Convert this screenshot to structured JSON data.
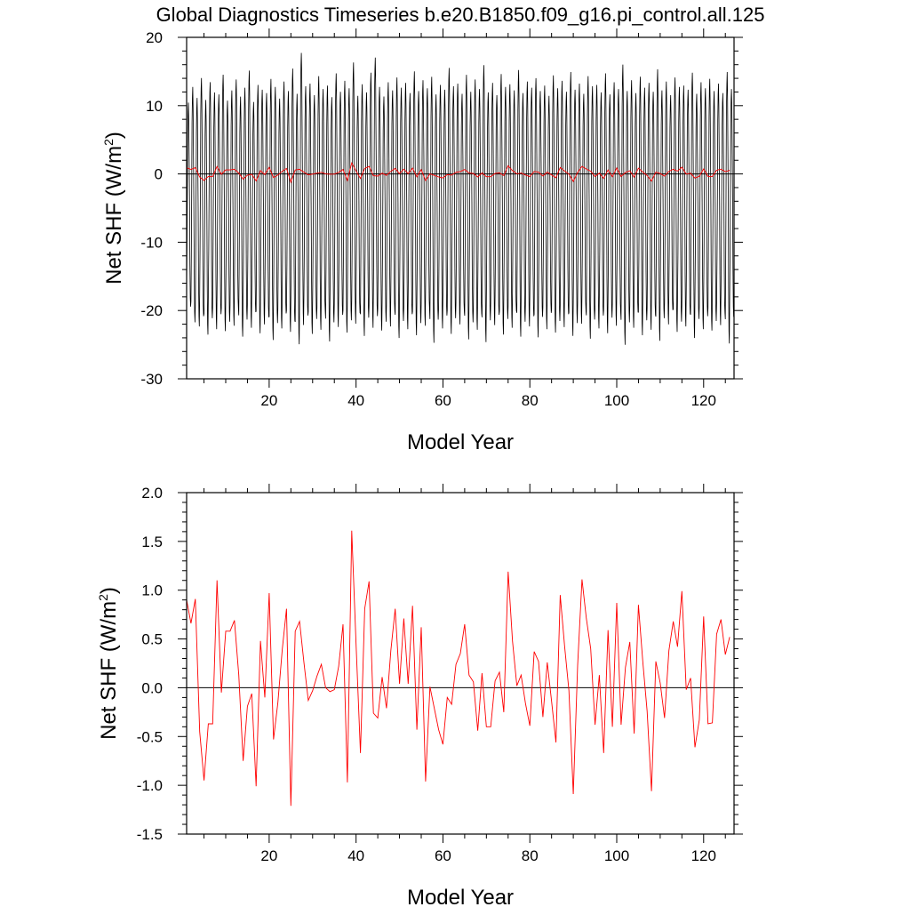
{
  "chart_data": [
    {
      "type": "line",
      "title": "Global Diagnostics Timeseries b.e20.B1850.f09_g16.pi_control.all.125",
      "xlabel": "Model Year",
      "ylabel": "Net SHF (W/m²)",
      "ylabel_main": "Net SHF (W/m",
      "ylabel_sup": "2",
      "ylabel_end": ")",
      "xlim": [
        1,
        127
      ],
      "ylim": [
        -30,
        20
      ],
      "x_ticks": [
        20,
        40,
        60,
        80,
        100,
        120
      ],
      "y_ticks": [
        -30,
        -20,
        -10,
        0,
        10,
        20
      ],
      "y_tick_labels": [
        "-30",
        "-20",
        "-10",
        "0",
        "10",
        "20"
      ],
      "zero_line": true,
      "series": [
        {
          "color": "#000000",
          "description": "monthly",
          "monthly_seasonal_max": [
            10.5,
            12.8,
            11.2,
            14.1,
            10.9,
            13.5,
            12.0,
            11.7,
            14.6,
            10.8,
            12.3,
            13.9,
            11.4,
            12.7,
            15.2,
            10.6,
            13.1,
            12.4,
            11.9,
            14.0,
            12.8,
            11.1,
            13.6,
            12.2,
            15.5,
            11.8,
            17.8,
            12.9,
            13.3,
            11.6,
            14.4,
            12.5,
            13.0,
            11.3,
            14.8,
            12.1,
            13.7,
            12.6,
            16.4,
            11.5,
            13.2,
            12.0,
            14.9,
            17.1,
            12.8,
            11.4,
            13.5,
            12.3,
            14.2,
            12.7,
            13.4,
            11.9,
            15.1,
            12.2,
            13.8,
            12.6,
            14.3,
            11.7,
            13.1,
            12.4,
            15.6,
            12.9,
            13.3,
            11.8,
            14.6,
            12.1,
            13.9,
            12.5,
            16.0,
            12.0,
            13.4,
            11.6,
            14.7,
            12.8,
            13.2,
            12.3,
            15.3,
            11.9,
            13.6,
            12.7,
            14.1,
            12.2,
            13.0,
            11.5,
            14.5,
            12.6,
            13.7,
            12.1,
            15.0,
            12.4,
            13.3,
            11.8,
            14.4,
            12.9,
            13.1,
            12.0,
            14.8,
            11.7,
            13.5,
            12.5,
            16.1,
            12.2,
            13.8,
            11.9,
            14.3,
            12.7,
            13.4,
            12.1,
            15.4,
            12.3,
            13.6,
            11.6,
            14.2,
            12.8,
            13.0,
            12.4,
            14.9,
            11.8,
            13.5,
            12.6,
            14.0,
            12.2,
            13.3,
            11.9,
            15.0,
            12.5,
            11.5
          ],
          "monthly_seasonal_min": [
            -19.5,
            -21.8,
            -22.4,
            -20.9,
            -23.6,
            -21.2,
            -22.8,
            -20.6,
            -23.1,
            -21.7,
            -22.3,
            -19.8,
            -23.9,
            -21.4,
            -22.6,
            -20.3,
            -23.4,
            -22.1,
            -21.0,
            -24.4,
            -21.9,
            -22.7,
            -20.5,
            -23.2,
            -21.6,
            -25.0,
            -22.2,
            -20.8,
            -23.5,
            -21.3,
            -22.9,
            -20.1,
            -24.6,
            -21.8,
            -22.5,
            -20.7,
            -23.3,
            -21.5,
            -22.0,
            -20.4,
            -23.8,
            -21.1,
            -22.6,
            -20.9,
            -23.0,
            -21.7,
            -22.4,
            -20.2,
            -24.1,
            -21.6,
            -22.8,
            -20.6,
            -23.7,
            -21.9,
            -22.3,
            -20.0,
            -24.8,
            -21.4,
            -22.7,
            -20.8,
            -23.5,
            -21.2,
            -22.1,
            -20.3,
            -24.3,
            -21.8,
            -22.9,
            -20.5,
            -24.7,
            -21.5,
            -22.2,
            -20.7,
            -23.6,
            -21.3,
            -22.6,
            -20.1,
            -23.9,
            -21.7,
            -22.4,
            -20.9,
            -24.0,
            -21.0,
            -22.8,
            -20.4,
            -23.3,
            -21.6,
            -22.5,
            -20.6,
            -23.8,
            -21.9,
            -22.0,
            -20.2,
            -24.2,
            -21.4,
            -22.7,
            -20.8,
            -23.4,
            -21.1,
            -22.3,
            -20.5,
            -25.1,
            -21.8,
            -22.6,
            -20.3,
            -23.7,
            -21.5,
            -22.9,
            -20.7,
            -24.5,
            -21.2,
            -22.1,
            -20.0,
            -23.2,
            -21.7,
            -22.4,
            -20.6,
            -24.1,
            -21.3,
            -22.8,
            -20.9,
            -23.0,
            -21.6,
            -22.2,
            -20.4,
            -24.9,
            -21.0,
            -23.1
          ]
        },
        {
          "name": "",
          "color": "#ff0000",
          "description": "annual",
          "x": [
            1,
            2,
            3,
            4,
            5,
            6,
            7,
            8,
            9,
            10,
            11,
            12,
            13,
            14,
            15,
            16,
            17,
            18,
            19,
            20,
            21,
            22,
            23,
            24,
            25,
            26,
            27,
            28,
            29,
            30,
            31,
            32,
            33,
            34,
            35,
            36,
            37,
            38,
            39,
            40,
            41,
            42,
            43,
            44,
            45,
            46,
            47,
            48,
            49,
            50,
            51,
            52,
            53,
            54,
            55,
            56,
            57,
            58,
            59,
            60,
            61,
            62,
            63,
            64,
            65,
            66,
            67,
            68,
            69,
            70,
            71,
            72,
            73,
            74,
            75,
            76,
            77,
            78,
            79,
            80,
            81,
            82,
            83,
            84,
            85,
            86,
            87,
            88,
            89,
            90,
            91,
            92,
            93,
            94,
            95,
            96,
            97,
            98,
            99,
            100,
            101,
            102,
            103,
            104,
            105,
            106,
            107,
            108,
            109,
            110,
            111,
            112,
            113,
            114,
            115,
            116,
            117,
            118,
            119,
            120,
            121,
            122,
            123,
            124,
            125,
            126
          ],
          "values": [
            0.9,
            0.66,
            0.91,
            -0.45,
            -0.95,
            -0.37,
            -0.37,
            1.1,
            -0.05,
            0.58,
            0.58,
            0.69,
            0.13,
            -0.75,
            -0.19,
            -0.06,
            -1.01,
            0.48,
            -0.1,
            0.97,
            -0.53,
            -0.15,
            0.39,
            0.81,
            -1.21,
            0.58,
            0.68,
            0.26,
            -0.13,
            -0.03,
            0.12,
            0.24,
            0.0,
            -0.04,
            -0.02,
            0.22,
            0.65,
            -0.97,
            1.61,
            0.44,
            -0.67,
            0.81,
            1.09,
            -0.26,
            -0.31,
            0.11,
            -0.21,
            0.38,
            0.81,
            0.04,
            0.71,
            0.04,
            0.84,
            -0.43,
            0.62,
            -0.96,
            0.01,
            -0.21,
            -0.43,
            -0.58,
            -0.1,
            -0.17,
            0.24,
            0.35,
            0.65,
            0.13,
            0.06,
            -0.44,
            0.15,
            -0.4,
            -0.4,
            0.07,
            0.16,
            -0.25,
            1.19,
            0.48,
            0.02,
            0.13,
            -0.16,
            -0.39,
            0.37,
            0.27,
            -0.3,
            0.26,
            -0.14,
            -0.56,
            0.95,
            0.43,
            -0.03,
            -1.09,
            0.23,
            1.11,
            0.71,
            0.4,
            -0.38,
            0.13,
            -0.67,
            0.59,
            -0.4,
            0.87,
            -0.38,
            0.21,
            0.47,
            -0.47,
            0.85,
            0.27,
            -0.24,
            -1.06,
            0.27,
            0.05,
            -0.31,
            0.38,
            0.68,
            0.42,
            0.99,
            -0.02,
            0.1,
            -0.61,
            -0.33,
            0.73,
            -0.37,
            -0.36,
            0.55,
            0.7,
            0.34,
            0.52
          ]
        }
      ]
    },
    {
      "type": "line",
      "title": "",
      "xlabel": "Model Year",
      "ylabel": "Net SHF (W/m²)",
      "ylabel_main": "Net SHF (W/m",
      "ylabel_sup": "2",
      "ylabel_end": ")",
      "xlim": [
        1,
        127
      ],
      "ylim": [
        -1.5,
        2.0
      ],
      "x_ticks": [
        20,
        40,
        60,
        80,
        100,
        120
      ],
      "y_ticks": [
        -1.5,
        -1.0,
        -0.5,
        0.0,
        0.5,
        1.0,
        1.5,
        2.0
      ],
      "y_tick_labels": [
        "-1.5",
        "-1.0",
        "-0.5",
        "0.0",
        "0.5",
        "1.0",
        "1.5",
        "2.0"
      ],
      "zero_line": true,
      "series": [
        {
          "name": "",
          "color": "#ff0000",
          "description": "annual",
          "x": [
            1,
            2,
            3,
            4,
            5,
            6,
            7,
            8,
            9,
            10,
            11,
            12,
            13,
            14,
            15,
            16,
            17,
            18,
            19,
            20,
            21,
            22,
            23,
            24,
            25,
            26,
            27,
            28,
            29,
            30,
            31,
            32,
            33,
            34,
            35,
            36,
            37,
            38,
            39,
            40,
            41,
            42,
            43,
            44,
            45,
            46,
            47,
            48,
            49,
            50,
            51,
            52,
            53,
            54,
            55,
            56,
            57,
            58,
            59,
            60,
            61,
            62,
            63,
            64,
            65,
            66,
            67,
            68,
            69,
            70,
            71,
            72,
            73,
            74,
            75,
            76,
            77,
            78,
            79,
            80,
            81,
            82,
            83,
            84,
            85,
            86,
            87,
            88,
            89,
            90,
            91,
            92,
            93,
            94,
            95,
            96,
            97,
            98,
            99,
            100,
            101,
            102,
            103,
            104,
            105,
            106,
            107,
            108,
            109,
            110,
            111,
            112,
            113,
            114,
            115,
            116,
            117,
            118,
            119,
            120,
            121,
            122,
            123,
            124,
            125,
            126
          ],
          "values": [
            0.9,
            0.66,
            0.91,
            -0.45,
            -0.95,
            -0.37,
            -0.37,
            1.1,
            -0.05,
            0.58,
            0.58,
            0.69,
            0.13,
            -0.75,
            -0.19,
            -0.06,
            -1.01,
            0.48,
            -0.1,
            0.97,
            -0.53,
            -0.15,
            0.39,
            0.81,
            -1.21,
            0.58,
            0.68,
            0.26,
            -0.13,
            -0.03,
            0.12,
            0.24,
            0.0,
            -0.04,
            -0.02,
            0.22,
            0.65,
            -0.97,
            1.61,
            0.44,
            -0.67,
            0.81,
            1.09,
            -0.26,
            -0.31,
            0.11,
            -0.21,
            0.38,
            0.81,
            0.04,
            0.71,
            0.04,
            0.84,
            -0.43,
            0.62,
            -0.96,
            0.01,
            -0.21,
            -0.43,
            -0.58,
            -0.1,
            -0.17,
            0.24,
            0.35,
            0.65,
            0.13,
            0.06,
            -0.44,
            0.15,
            -0.4,
            -0.4,
            0.07,
            0.16,
            -0.25,
            1.19,
            0.48,
            0.02,
            0.13,
            -0.16,
            -0.39,
            0.37,
            0.27,
            -0.3,
            0.26,
            -0.14,
            -0.56,
            0.95,
            0.43,
            -0.03,
            -1.09,
            0.23,
            1.11,
            0.71,
            0.4,
            -0.38,
            0.13,
            -0.67,
            0.59,
            -0.4,
            0.87,
            -0.38,
            0.21,
            0.47,
            -0.47,
            0.85,
            0.27,
            -0.24,
            -1.06,
            0.27,
            0.05,
            -0.31,
            0.38,
            0.68,
            0.42,
            0.99,
            -0.02,
            0.1,
            -0.61,
            -0.33,
            0.73,
            -0.37,
            -0.36,
            0.55,
            0.7,
            0.34,
            0.52
          ]
        }
      ]
    }
  ]
}
